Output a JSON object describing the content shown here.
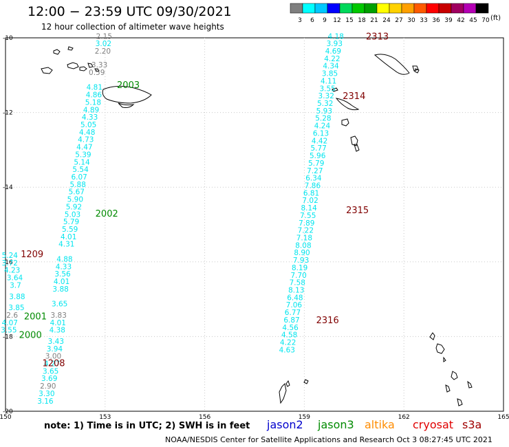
{
  "title": "12:00 − 23:59 UTC 09/30/2021",
  "subtitle": "12 hour collection of altimeter wave heights",
  "colors": {
    "cyan": "#00e5ee",
    "gray": "#808080",
    "green": "#008a00",
    "darkred": "#800000",
    "black": "#000000",
    "grid": "#c8c8c8"
  },
  "color_scale": {
    "unit": "(ft)",
    "bins": [
      {
        "label": "3",
        "color": "#7f7f7f"
      },
      {
        "label": "6",
        "color": "#00ffff"
      },
      {
        "label": "9",
        "color": "#00c8ff"
      },
      {
        "label": "12",
        "color": "#0000ff"
      },
      {
        "label": "15",
        "color": "#00d85a"
      },
      {
        "label": "18",
        "color": "#00c800"
      },
      {
        "label": "21",
        "color": "#00a000"
      },
      {
        "label": "24",
        "color": "#ffff00"
      },
      {
        "label": "27",
        "color": "#ffd200"
      },
      {
        "label": "30",
        "color": "#ffa000"
      },
      {
        "label": "33",
        "color": "#ff5a00"
      },
      {
        "label": "36",
        "color": "#ff0000"
      },
      {
        "label": "39",
        "color": "#c80000"
      },
      {
        "label": "42",
        "color": "#a00060"
      },
      {
        "label": "45",
        "color": "#b400b4"
      },
      {
        "label": "70",
        "color": "#000000"
      }
    ]
  },
  "axes": {
    "lon_ticks": [
      "150",
      "153",
      "156",
      "159",
      "162",
      "165"
    ],
    "lat_ticks": [
      "-10",
      "-12",
      "-14",
      "-16",
      "-18",
      "-20"
    ],
    "lon_range": [
      150,
      165
    ],
    "lat_range": [
      -10,
      -20
    ]
  },
  "track_west": [
    {
      "t": "2.15",
      "c": "gray",
      "lon": 152.97,
      "lat": -9.95
    },
    {
      "t": "3.02",
      "c": "cyan",
      "lon": 152.95,
      "lat": -10.15
    },
    {
      "t": "2.20",
      "c": "gray",
      "lon": 152.93,
      "lat": -10.35
    },
    {
      "t": "3.33",
      "c": "gray",
      "lon": 152.83,
      "lat": -10.72
    },
    {
      "t": "0.59",
      "c": "gray",
      "lon": 152.75,
      "lat": -10.92
    },
    {
      "t": "4.81",
      "c": "cyan",
      "lon": 152.68,
      "lat": -11.32
    },
    {
      "t": "4.86",
      "c": "cyan",
      "lon": 152.66,
      "lat": -11.52
    },
    {
      "t": "5.18",
      "c": "cyan",
      "lon": 152.64,
      "lat": -11.72
    },
    {
      "t": "4.89",
      "c": "cyan",
      "lon": 152.58,
      "lat": -11.92
    },
    {
      "t": "4.33",
      "c": "cyan",
      "lon": 152.54,
      "lat": -12.12
    },
    {
      "t": "5.05",
      "c": "cyan",
      "lon": 152.5,
      "lat": -12.32
    },
    {
      "t": "4.48",
      "c": "cyan",
      "lon": 152.46,
      "lat": -12.52
    },
    {
      "t": "4.73",
      "c": "cyan",
      "lon": 152.42,
      "lat": -12.72
    },
    {
      "t": "4.47",
      "c": "cyan",
      "lon": 152.38,
      "lat": -12.92
    },
    {
      "t": "5.39",
      "c": "cyan",
      "lon": 152.34,
      "lat": -13.12
    },
    {
      "t": "5.14",
      "c": "cyan",
      "lon": 152.3,
      "lat": -13.32
    },
    {
      "t": "5.54",
      "c": "cyan",
      "lon": 152.26,
      "lat": -13.52
    },
    {
      "t": "6.07",
      "c": "cyan",
      "lon": 152.22,
      "lat": -13.72
    },
    {
      "t": "5.88",
      "c": "cyan",
      "lon": 152.18,
      "lat": -13.92
    },
    {
      "t": "5.67",
      "c": "cyan",
      "lon": 152.14,
      "lat": -14.12
    },
    {
      "t": "5.90",
      "c": "cyan",
      "lon": 152.1,
      "lat": -14.32
    },
    {
      "t": "5.92",
      "c": "cyan",
      "lon": 152.06,
      "lat": -14.52
    },
    {
      "t": "5.03",
      "c": "cyan",
      "lon": 152.02,
      "lat": -14.72
    },
    {
      "t": "5.79",
      "c": "cyan",
      "lon": 151.98,
      "lat": -14.92
    },
    {
      "t": "5.59",
      "c": "cyan",
      "lon": 151.94,
      "lat": -15.12
    },
    {
      "t": "4.01",
      "c": "cyan",
      "lon": 151.9,
      "lat": -15.32
    },
    {
      "t": "4.31",
      "c": "cyan",
      "lon": 151.84,
      "lat": -15.52
    },
    {
      "t": "4.88",
      "c": "cyan",
      "lon": 151.78,
      "lat": -15.92
    },
    {
      "t": "4.33",
      "c": "cyan",
      "lon": 151.75,
      "lat": -16.12
    },
    {
      "t": "3.56",
      "c": "cyan",
      "lon": 151.72,
      "lat": -16.32
    },
    {
      "t": "4.01",
      "c": "cyan",
      "lon": 151.69,
      "lat": -16.52
    },
    {
      "t": "3.88",
      "c": "cyan",
      "lon": 151.66,
      "lat": -16.72
    },
    {
      "t": "3.65",
      "c": "cyan",
      "lon": 151.63,
      "lat": -17.12
    },
    {
      "t": "3.83",
      "c": "gray",
      "lon": 151.6,
      "lat": -17.42
    },
    {
      "t": "4.01",
      "c": "cyan",
      "lon": 151.58,
      "lat": -17.62
    },
    {
      "t": "4.38",
      "c": "cyan",
      "lon": 151.56,
      "lat": -17.82
    },
    {
      "t": "3.43",
      "c": "cyan",
      "lon": 151.52,
      "lat": -18.12
    },
    {
      "t": "3.94",
      "c": "cyan",
      "lon": 151.48,
      "lat": -18.32
    },
    {
      "t": "3.00",
      "c": "gray",
      "lon": 151.44,
      "lat": -18.52
    },
    {
      "t": "4.27",
      "c": "cyan",
      "lon": 151.4,
      "lat": -18.72
    },
    {
      "t": "3.65",
      "c": "cyan",
      "lon": 151.36,
      "lat": -18.92
    },
    {
      "t": "3.69",
      "c": "cyan",
      "lon": 151.32,
      "lat": -19.12
    },
    {
      "t": "2.90",
      "c": "gray",
      "lon": 151.28,
      "lat": -19.32
    },
    {
      "t": "3.30",
      "c": "cyan",
      "lon": 151.24,
      "lat": -19.52
    },
    {
      "t": "3.16",
      "c": "cyan",
      "lon": 151.2,
      "lat": -19.72
    }
  ],
  "track_west_extra": [
    {
      "t": "5.24",
      "c": "cyan",
      "lon": 150.13,
      "lat": -15.82
    },
    {
      "t": "3.72",
      "c": "cyan",
      "lon": 150.13,
      "lat": -16.02
    },
    {
      "t": "4.23",
      "c": "cyan",
      "lon": 150.2,
      "lat": -16.22
    },
    {
      "t": "3.64",
      "c": "cyan",
      "lon": 150.28,
      "lat": -16.42
    },
    {
      "t": "3.7",
      "c": "cyan",
      "lon": 150.3,
      "lat": -16.62
    },
    {
      "t": "3.88",
      "c": "cyan",
      "lon": 150.35,
      "lat": -16.92
    },
    {
      "t": "3.85",
      "c": "cyan",
      "lon": 150.33,
      "lat": -17.22
    },
    {
      "t": "2.6",
      "c": "gray",
      "lon": 150.2,
      "lat": -17.42
    },
    {
      "t": "4.07",
      "c": "cyan",
      "lon": 150.13,
      "lat": -17.62
    },
    {
      "t": "3.55",
      "c": "cyan",
      "lon": 150.1,
      "lat": -17.82
    }
  ],
  "track_east": [
    {
      "t": "4.18",
      "c": "cyan",
      "lon": 159.95,
      "lat": -9.95
    },
    {
      "t": "3.93",
      "c": "cyan",
      "lon": 159.91,
      "lat": -10.15
    },
    {
      "t": "4.69",
      "c": "cyan",
      "lon": 159.87,
      "lat": -10.35
    },
    {
      "t": "4.22",
      "c": "cyan",
      "lon": 159.84,
      "lat": -10.55
    },
    {
      "t": "4.34",
      "c": "cyan",
      "lon": 159.8,
      "lat": -10.75
    },
    {
      "t": "3.85",
      "c": "cyan",
      "lon": 159.77,
      "lat": -10.95
    },
    {
      "t": "4.11",
      "c": "cyan",
      "lon": 159.73,
      "lat": -11.15
    },
    {
      "t": "3.55",
      "c": "cyan",
      "lon": 159.7,
      "lat": -11.35
    },
    {
      "t": "3.32",
      "c": "cyan",
      "lon": 159.66,
      "lat": -11.55
    },
    {
      "t": "5.32",
      "c": "cyan",
      "lon": 159.63,
      "lat": -11.75
    },
    {
      "t": "5.93",
      "c": "cyan",
      "lon": 159.6,
      "lat": -11.95
    },
    {
      "t": "5.28",
      "c": "cyan",
      "lon": 159.57,
      "lat": -12.15
    },
    {
      "t": "4.24",
      "c": "cyan",
      "lon": 159.54,
      "lat": -12.35
    },
    {
      "t": "6.13",
      "c": "cyan",
      "lon": 159.5,
      "lat": -12.55
    },
    {
      "t": "4.42",
      "c": "cyan",
      "lon": 159.46,
      "lat": -12.75
    },
    {
      "t": "5.77",
      "c": "cyan",
      "lon": 159.43,
      "lat": -12.95
    },
    {
      "t": "5.96",
      "c": "cyan",
      "lon": 159.4,
      "lat": -13.15
    },
    {
      "t": "5.79",
      "c": "cyan",
      "lon": 159.36,
      "lat": -13.35
    },
    {
      "t": "7.27",
      "c": "cyan",
      "lon": 159.32,
      "lat": -13.55
    },
    {
      "t": "6.34",
      "c": "cyan",
      "lon": 159.28,
      "lat": -13.75
    },
    {
      "t": "7.86",
      "c": "cyan",
      "lon": 159.25,
      "lat": -13.95
    },
    {
      "t": "6.81",
      "c": "cyan",
      "lon": 159.21,
      "lat": -14.15
    },
    {
      "t": "7.02",
      "c": "cyan",
      "lon": 159.18,
      "lat": -14.35
    },
    {
      "t": "8.14",
      "c": "cyan",
      "lon": 159.14,
      "lat": -14.55
    },
    {
      "t": "7.55",
      "c": "cyan",
      "lon": 159.11,
      "lat": -14.75
    },
    {
      "t": "7.89",
      "c": "cyan",
      "lon": 159.07,
      "lat": -14.95
    },
    {
      "t": "7.22",
      "c": "cyan",
      "lon": 159.04,
      "lat": -15.15
    },
    {
      "t": "7.18",
      "c": "cyan",
      "lon": 159.0,
      "lat": -15.35
    },
    {
      "t": "8.08",
      "c": "cyan",
      "lon": 158.97,
      "lat": -15.55
    },
    {
      "t": "8.90",
      "c": "cyan",
      "lon": 158.93,
      "lat": -15.75
    },
    {
      "t": "7.93",
      "c": "cyan",
      "lon": 158.9,
      "lat": -15.95
    },
    {
      "t": "8.19",
      "c": "cyan",
      "lon": 158.86,
      "lat": -16.15
    },
    {
      "t": "7.70",
      "c": "cyan",
      "lon": 158.83,
      "lat": -16.35
    },
    {
      "t": "7.58",
      "c": "cyan",
      "lon": 158.79,
      "lat": -16.55
    },
    {
      "t": "8.13",
      "c": "cyan",
      "lon": 158.76,
      "lat": -16.75
    },
    {
      "t": "6.48",
      "c": "cyan",
      "lon": 158.72,
      "lat": -16.95
    },
    {
      "t": "7.06",
      "c": "cyan",
      "lon": 158.69,
      "lat": -17.15
    },
    {
      "t": "6.77",
      "c": "cyan",
      "lon": 158.65,
      "lat": -17.35
    },
    {
      "t": "6.87",
      "c": "cyan",
      "lon": 158.62,
      "lat": -17.55
    },
    {
      "t": "4.56",
      "c": "cyan",
      "lon": 158.58,
      "lat": -17.75
    },
    {
      "t": "4.58",
      "c": "cyan",
      "lon": 158.55,
      "lat": -17.95
    },
    {
      "t": "4.22",
      "c": "cyan",
      "lon": 158.51,
      "lat": -18.15
    },
    {
      "t": "4.63",
      "c": "cyan",
      "lon": 158.48,
      "lat": -18.35
    }
  ],
  "time_labels": [
    {
      "t": "2003",
      "c": "green",
      "lon": 153.7,
      "lat": -11.25
    },
    {
      "t": "2002",
      "c": "green",
      "lon": 153.05,
      "lat": -14.7
    },
    {
      "t": "1209",
      "c": "darkred",
      "lon": 150.8,
      "lat": -15.78
    },
    {
      "t": "2001",
      "c": "green",
      "lon": 150.9,
      "lat": -17.45
    },
    {
      "t": "2000",
      "c": "green",
      "lon": 150.75,
      "lat": -17.95
    },
    {
      "t": "1208",
      "c": "darkred",
      "lon": 151.45,
      "lat": -18.7
    },
    {
      "t": "2313",
      "c": "darkred",
      "lon": 161.2,
      "lat": -9.95
    },
    {
      "t": "2314",
      "c": "darkred",
      "lon": 160.5,
      "lat": -11.55
    },
    {
      "t": "2315",
      "c": "darkred",
      "lon": 160.6,
      "lat": -14.6
    },
    {
      "t": "2316",
      "c": "darkred",
      "lon": 159.7,
      "lat": -17.55
    }
  ],
  "note": "note:  1) Time is in UTC;  2) SWH is in feet",
  "legend": [
    {
      "label": "jason2",
      "color": "#0000cc"
    },
    {
      "label": "jason3",
      "color": "#008a00"
    },
    {
      "label": "altika",
      "color": "#ff8c00"
    },
    {
      "label": "cryosat",
      "color": "#e00000"
    },
    {
      "label": "s3a",
      "color": "#a00000"
    }
  ],
  "footer": "NOAA/NESDIS Center for Satellite Applications and Research    Oct  3 08:27:45 UTC 2021"
}
